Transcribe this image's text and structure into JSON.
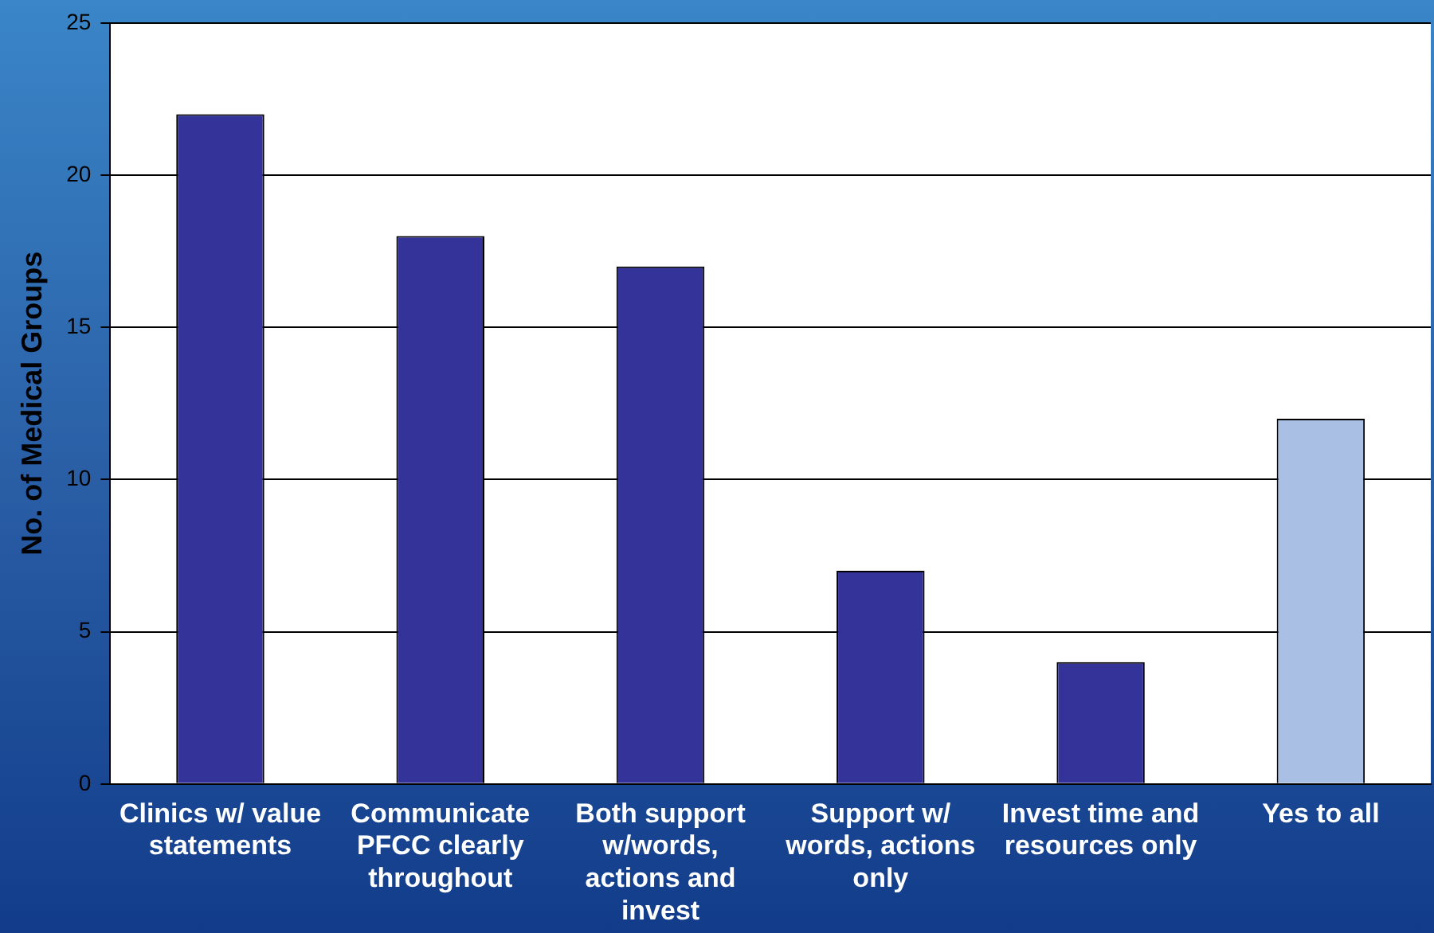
{
  "chart_data": {
    "type": "bar",
    "ylabel": "No. of Medical Groups",
    "categories": [
      "Clinics w/ value statements",
      "Communicate PFCC clearly throughout",
      "Both support w/words, actions and invest",
      "Support w/ words, actions only",
      "Invest time and resources only",
      "Yes to all"
    ],
    "values": [
      22,
      18,
      17,
      7,
      4,
      12
    ],
    "colors": [
      "#333399",
      "#333399",
      "#333399",
      "#333399",
      "#333399",
      "#a9bfe3"
    ],
    "ylim": [
      0,
      25
    ],
    "yticks": [
      0,
      5,
      10,
      15,
      20,
      25
    ],
    "grid": "y",
    "legend": false
  }
}
